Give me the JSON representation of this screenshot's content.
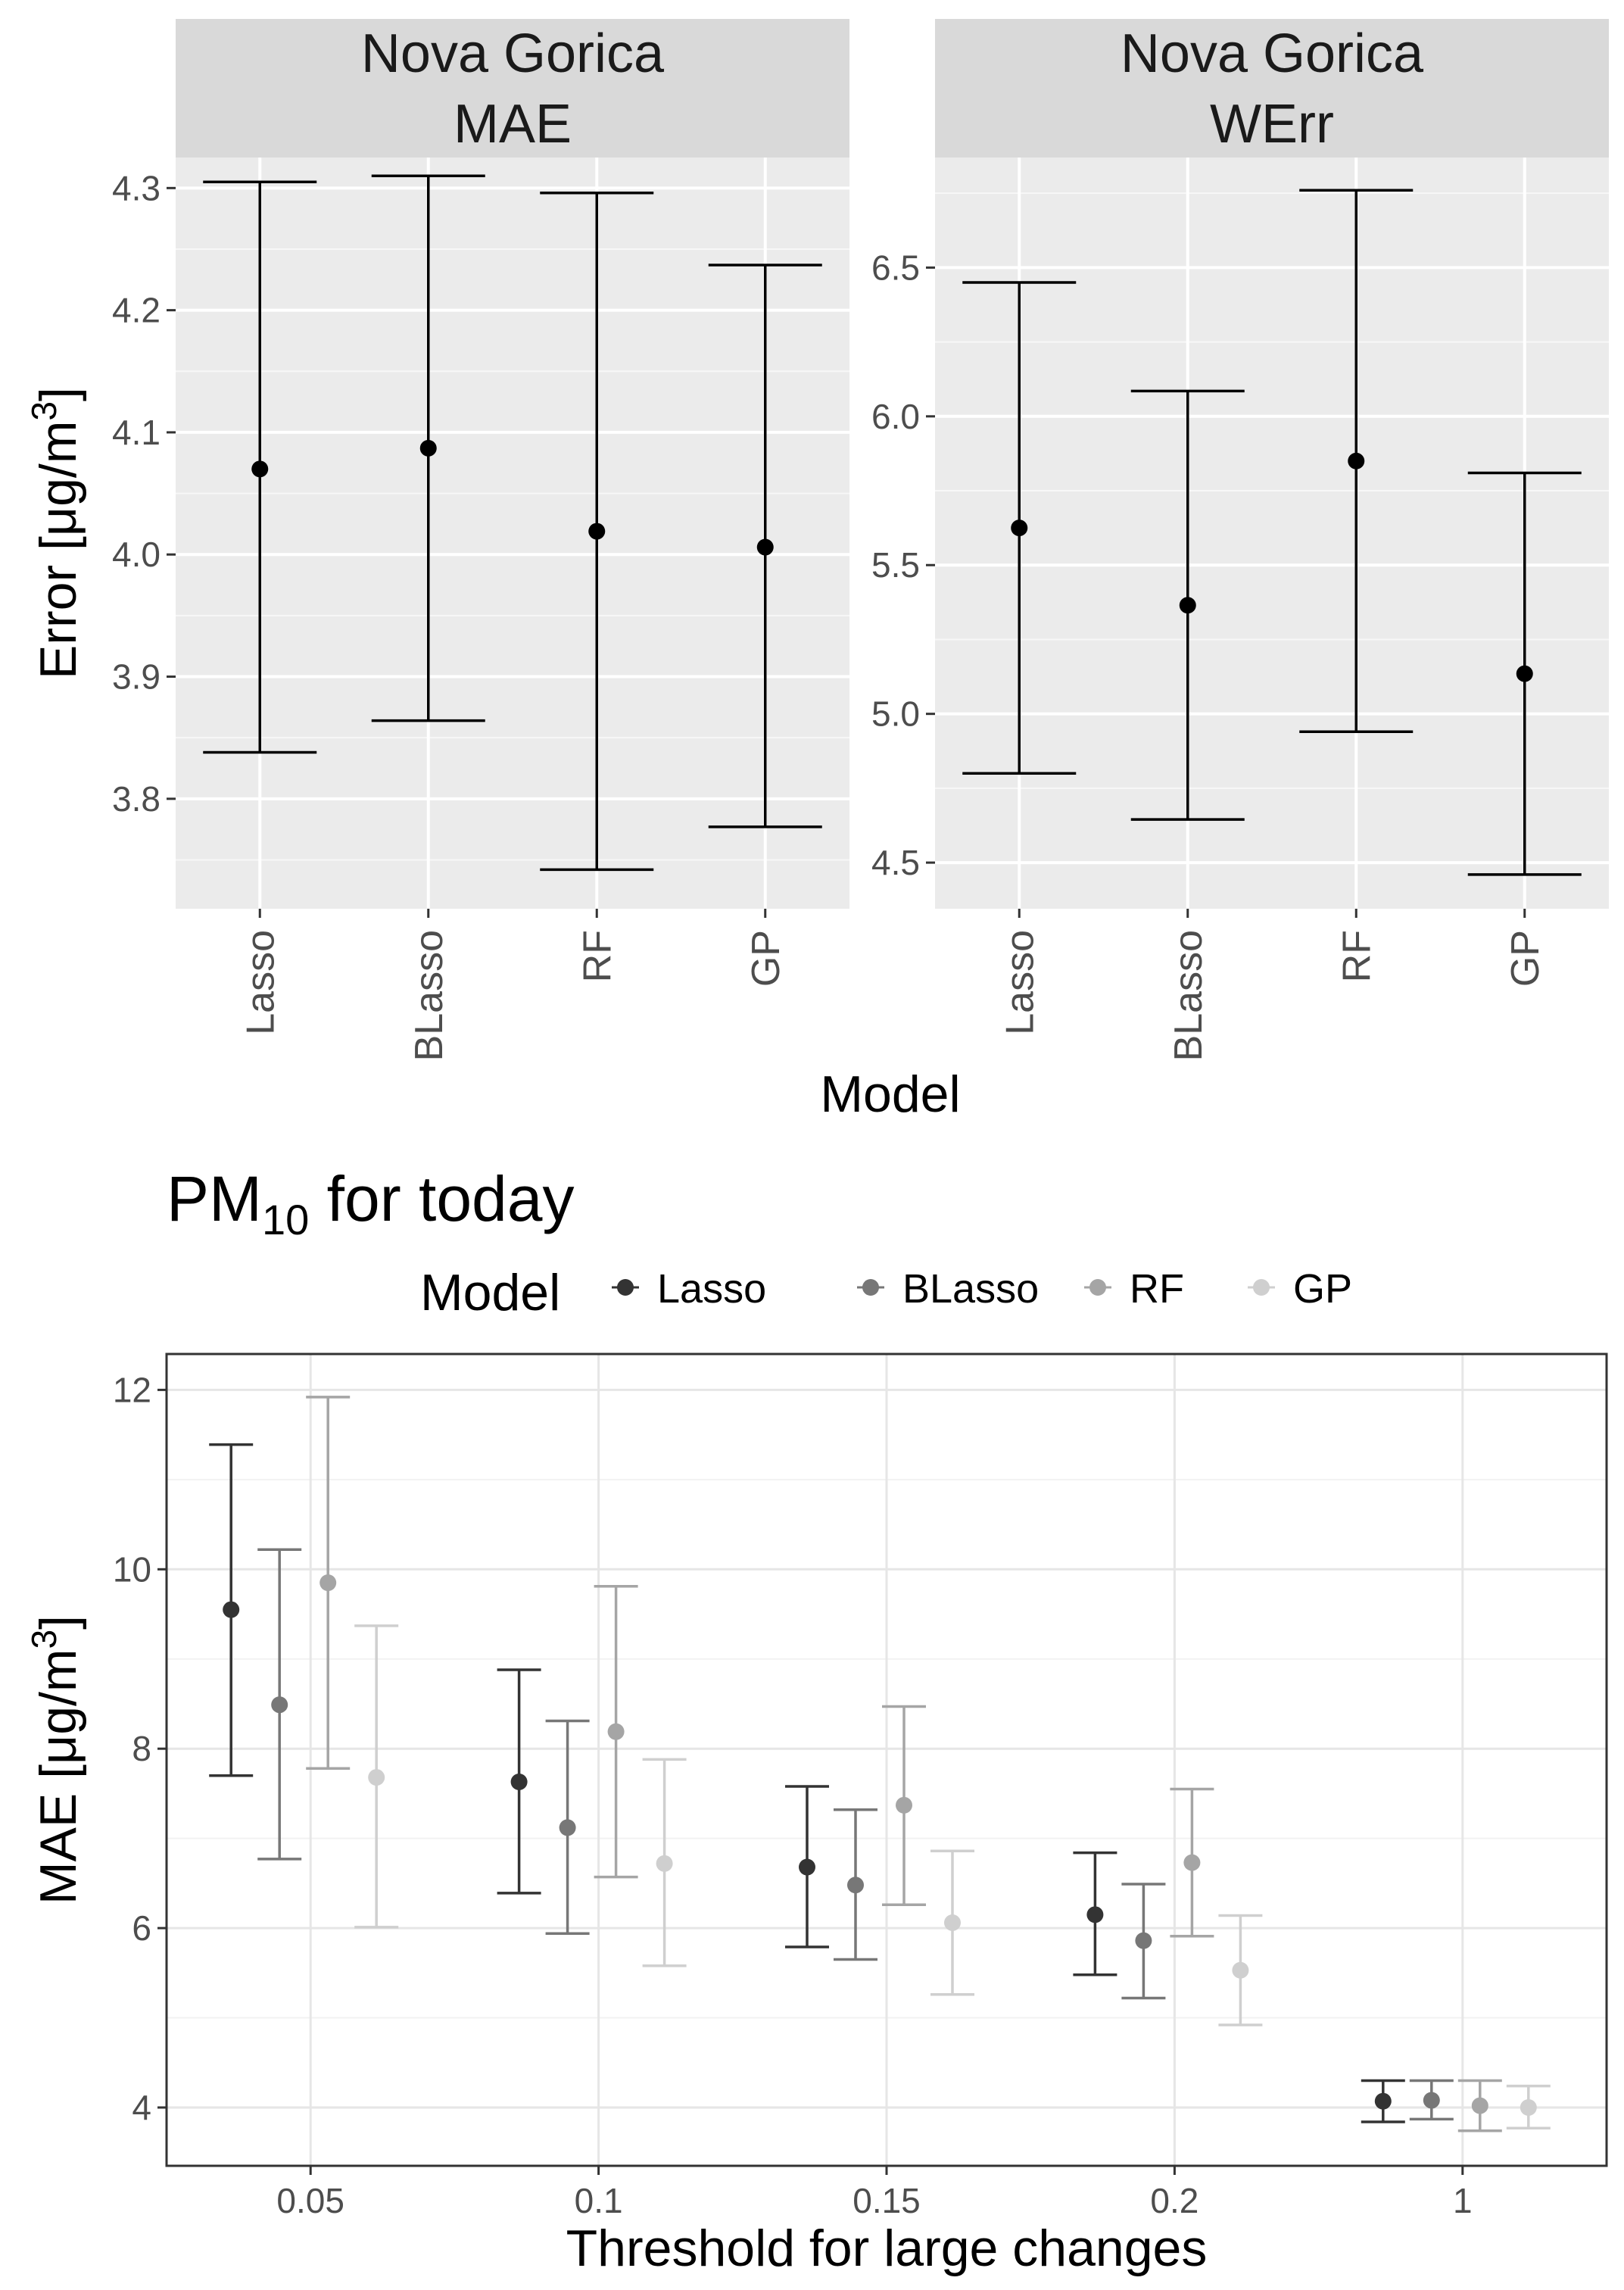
{
  "chart_data": [
    {
      "type": "errorbar",
      "title": "",
      "xlabel": "Model",
      "ylabel": "Error [μg/m3]",
      "ylabel_parts": {
        "main": "Error [μg/m",
        "sup": "3",
        "end": "]"
      },
      "categories": [
        "Lasso",
        "BLasso",
        "RF",
        "GP"
      ],
      "facets": [
        {
          "strip_line1": "Nova Gorica",
          "strip_line2": "MAE",
          "ylim": [
            3.71,
            4.325
          ],
          "yticks": [
            3.8,
            3.9,
            4.0,
            4.1,
            4.2,
            4.3
          ],
          "ytick_labels": [
            "3.8",
            "3.9",
            "4.0",
            "4.1",
            "4.2",
            "4.3"
          ],
          "points": [
            {
              "model": "Lasso",
              "mean": 4.07,
              "lower": 3.838,
              "upper": 4.305
            },
            {
              "model": "BLasso",
              "mean": 4.087,
              "lower": 3.864,
              "upper": 4.31
            },
            {
              "model": "RF",
              "mean": 4.019,
              "lower": 3.742,
              "upper": 4.296
            },
            {
              "model": "GP",
              "mean": 4.006,
              "lower": 3.777,
              "upper": 4.237
            }
          ]
        },
        {
          "strip_line1": "Nova Gorica",
          "strip_line2": "WErr",
          "ylim": [
            4.345,
            6.87
          ],
          "yticks": [
            4.5,
            5.0,
            5.5,
            6.0,
            6.5
          ],
          "ytick_labels": [
            "4.5",
            "5.0",
            "5.5",
            "6.0",
            "6.5"
          ],
          "points": [
            {
              "model": "Lasso",
              "mean": 5.625,
              "lower": 4.8,
              "upper": 6.45
            },
            {
              "model": "BLasso",
              "mean": 5.365,
              "lower": 4.645,
              "upper": 6.085
            },
            {
              "model": "RF",
              "mean": 5.85,
              "lower": 4.94,
              "upper": 6.76
            },
            {
              "model": "GP",
              "mean": 5.135,
              "lower": 4.46,
              "upper": 5.81
            }
          ]
        }
      ]
    },
    {
      "type": "errorbar",
      "title": "PM10 for today",
      "title_parts": {
        "main": "PM",
        "sub": "10",
        "end": " for today"
      },
      "xlabel": "Threshold for large changes",
      "ylabel": "MAE [μg/m3]",
      "ylabel_parts": {
        "main": "MAE [μg/m",
        "sup": "3",
        "end": "]"
      },
      "categories": [
        "0.05",
        "0.1",
        "0.15",
        "0.2",
        "1"
      ],
      "ylim": [
        3.35,
        12.4
      ],
      "yticks": [
        4,
        6,
        8,
        10,
        12
      ],
      "ytick_labels": [
        "4",
        "6",
        "8",
        "10",
        "12"
      ],
      "legend": {
        "title": "Model",
        "position": "top"
      },
      "series": [
        {
          "name": "Lasso",
          "color": "#333333",
          "mean": [
            9.55,
            7.63,
            6.68,
            6.15,
            4.07
          ],
          "lower": [
            7.7,
            6.39,
            5.79,
            5.48,
            3.84
          ],
          "upper": [
            11.39,
            8.88,
            7.58,
            6.84,
            4.3
          ]
        },
        {
          "name": "BLasso",
          "color": "#777777",
          "mean": [
            8.49,
            7.12,
            6.48,
            5.86,
            4.08
          ],
          "lower": [
            6.77,
            5.94,
            5.65,
            5.22,
            3.87
          ],
          "upper": [
            10.22,
            8.31,
            7.32,
            6.49,
            4.3
          ]
        },
        {
          "name": "RF",
          "color": "#a5a5a5",
          "mean": [
            9.85,
            8.19,
            7.37,
            6.73,
            4.02
          ],
          "lower": [
            7.78,
            6.57,
            6.26,
            5.91,
            3.74
          ],
          "upper": [
            11.92,
            9.81,
            8.47,
            7.55,
            4.3
          ]
        },
        {
          "name": "GP",
          "color": "#cfcfcf",
          "mean": [
            7.68,
            6.72,
            6.06,
            5.53,
            4.0
          ],
          "lower": [
            6.01,
            5.58,
            5.26,
            4.92,
            3.77
          ],
          "upper": [
            9.37,
            7.88,
            6.86,
            6.14,
            4.24
          ]
        }
      ]
    }
  ]
}
